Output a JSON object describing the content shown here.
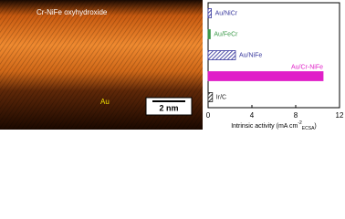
{
  "image": {
    "label_top": "Cr-NiFe oxyhydroxide",
    "label_bottom": "Au",
    "scale_bar": "2 nm"
  },
  "chart_data": {
    "type": "hbar",
    "categories": [
      "Au/NiCr",
      "Au/FeCr",
      "Au/NiFe",
      "Au/Cr-NiFe",
      "Ir/C"
    ],
    "values": [
      0.3,
      0.2,
      2.5,
      10.5,
      0.4
    ],
    "colors": [
      "#3a3a9e",
      "#3c9a4a",
      "#3a3a9e",
      "#e020c8",
      "#222222"
    ],
    "hatched": [
      true,
      false,
      true,
      false,
      true
    ],
    "x_label": {
      "text": "Intrinsic activity (mA cm",
      "superscript": "-2",
      "subscript": "ECSA",
      "close": ")"
    },
    "xlim": [
      0,
      12
    ],
    "xticks": [
      0,
      4,
      8,
      12
    ]
  }
}
